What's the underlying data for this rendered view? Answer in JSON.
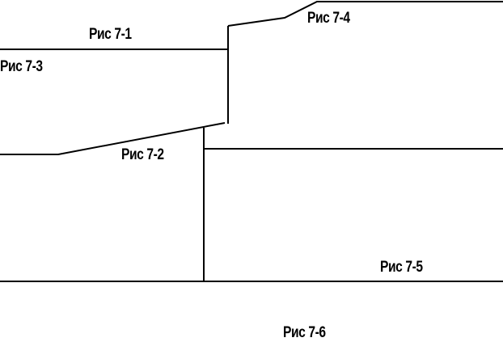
{
  "labels": {
    "fig_7_1": "Рис 7-1",
    "fig_7_2": "Рис 7-2",
    "fig_7_3": "Рис 7-3",
    "fig_7_4": "Рис 7-4",
    "fig_7_5": "Рис 7-5",
    "fig_7_6": "Рис 7-6"
  },
  "line_color": "#000000"
}
